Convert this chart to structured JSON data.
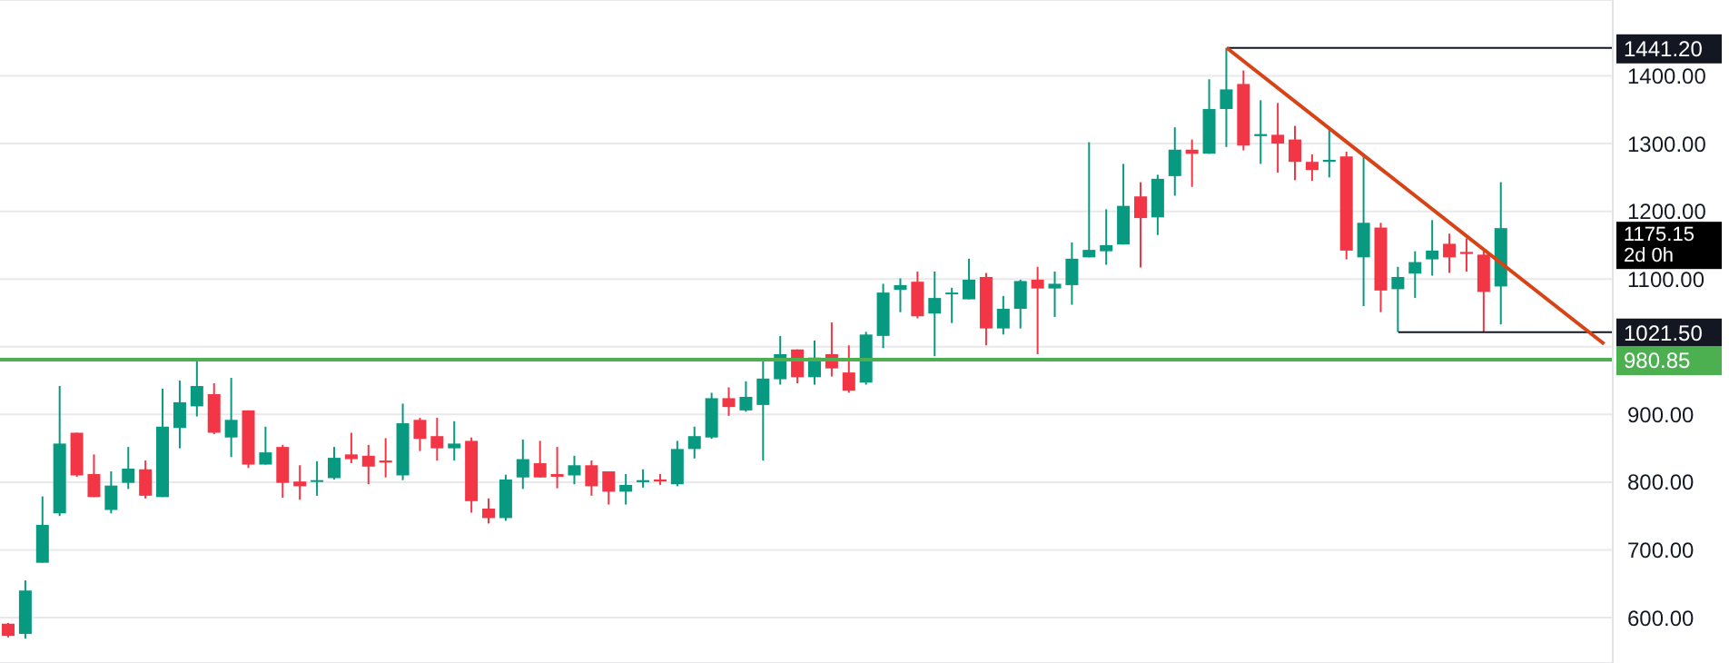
{
  "chart_data": {
    "type": "candlestick",
    "categories": [
      null,
      null,
      null,
      null,
      null,
      null,
      null,
      null,
      null,
      null,
      null,
      null,
      null,
      null,
      null,
      null,
      null,
      null,
      null,
      null,
      null,
      null,
      null,
      null,
      null,
      null,
      null,
      null,
      null,
      null,
      null,
      null,
      null,
      null,
      null,
      null,
      null,
      null,
      null,
      null,
      null,
      null,
      null,
      null,
      null,
      null,
      null,
      null,
      null,
      null,
      null,
      null,
      null,
      null,
      null,
      null,
      null,
      null,
      null,
      null,
      null,
      null,
      null,
      null,
      null,
      null,
      null,
      null,
      null,
      null,
      null,
      null,
      null,
      null,
      null,
      null,
      null,
      null,
      null,
      null,
      null,
      null,
      null,
      null,
      null,
      null,
      null,
      null,
      null,
      null,
      null,
      null,
      null,
      null
    ],
    "ohlc": [
      [
        591,
        592,
        571,
        573
      ],
      [
        576,
        655,
        569,
        640
      ],
      [
        681,
        779,
        681,
        737
      ],
      [
        754,
        942,
        750,
        857
      ],
      [
        873,
        873,
        808,
        810
      ],
      [
        812,
        841,
        778,
        778
      ],
      [
        759,
        816,
        754,
        795
      ],
      [
        799,
        852,
        790,
        820
      ],
      [
        819,
        832,
        776,
        780
      ],
      [
        778,
        938,
        778,
        882
      ],
      [
        880,
        950,
        850,
        918
      ],
      [
        912,
        983,
        897,
        942
      ],
      [
        930,
        946,
        871,
        873
      ],
      [
        866,
        954,
        837,
        892
      ],
      [
        906,
        906,
        821,
        826
      ],
      [
        826,
        882,
        826,
        844
      ],
      [
        852,
        855,
        777,
        799
      ],
      [
        801,
        825,
        774,
        794
      ],
      [
        801,
        831,
        780,
        803
      ],
      [
        806,
        852,
        804,
        836
      ],
      [
        841,
        873,
        828,
        834
      ],
      [
        839,
        855,
        797,
        823
      ],
      [
        832,
        865,
        807,
        829
      ],
      [
        810,
        916,
        803,
        887
      ],
      [
        892,
        895,
        846,
        864
      ],
      [
        868,
        895,
        832,
        850
      ],
      [
        850,
        890,
        832,
        857
      ],
      [
        861,
        866,
        755,
        772
      ],
      [
        761,
        776,
        739,
        747
      ],
      [
        747,
        811,
        743,
        804
      ],
      [
        807,
        863,
        790,
        834
      ],
      [
        828,
        861,
        807,
        807
      ],
      [
        812,
        852,
        791,
        808
      ],
      [
        810,
        839,
        797,
        825
      ],
      [
        825,
        832,
        780,
        794
      ],
      [
        816,
        816,
        767,
        786
      ],
      [
        786,
        812,
        767,
        796
      ],
      [
        800,
        819,
        792,
        803
      ],
      [
        804,
        812,
        796,
        801
      ],
      [
        797,
        861,
        794,
        849
      ],
      [
        849,
        882,
        835,
        868
      ],
      [
        866,
        932,
        864,
        924
      ],
      [
        924,
        940,
        898,
        911
      ],
      [
        906,
        949,
        904,
        926
      ],
      [
        914,
        983,
        832,
        953
      ],
      [
        952,
        1016,
        944,
        989
      ],
      [
        996,
        996,
        946,
        955
      ],
      [
        955,
        1009,
        944,
        984
      ],
      [
        989,
        1036,
        956,
        968
      ],
      [
        962,
        1002,
        932,
        935
      ],
      [
        947,
        1022,
        944,
        1018
      ],
      [
        1016,
        1093,
        998,
        1080
      ],
      [
        1084,
        1101,
        1051,
        1091
      ],
      [
        1096,
        1111,
        1042,
        1045
      ],
      [
        1049,
        1111,
        986,
        1072
      ],
      [
        1078,
        1087,
        1035,
        1080
      ],
      [
        1070,
        1130,
        1070,
        1099
      ],
      [
        1103,
        1109,
        1002,
        1027
      ],
      [
        1027,
        1075,
        1018,
        1056
      ],
      [
        1056,
        1099,
        1027,
        1097
      ],
      [
        1099,
        1118,
        989,
        1086
      ],
      [
        1086,
        1111,
        1044,
        1093
      ],
      [
        1091,
        1154,
        1062,
        1130
      ],
      [
        1132,
        1302,
        1132,
        1143
      ],
      [
        1141,
        1203,
        1121,
        1150
      ],
      [
        1151,
        1270,
        1151,
        1208
      ],
      [
        1222,
        1243,
        1117,
        1190
      ],
      [
        1191,
        1254,
        1165,
        1248
      ],
      [
        1252,
        1324,
        1223,
        1291
      ],
      [
        1291,
        1306,
        1236,
        1285
      ],
      [
        1285,
        1395,
        1285,
        1351
      ],
      [
        1351,
        1441.2,
        1295,
        1380
      ],
      [
        1388,
        1408,
        1290,
        1297
      ],
      [
        1311,
        1364,
        1270,
        1314
      ],
      [
        1313,
        1360,
        1257,
        1300
      ],
      [
        1306,
        1326,
        1246,
        1273
      ],
      [
        1273,
        1284,
        1245,
        1261
      ],
      [
        1273,
        1324,
        1250,
        1276
      ],
      [
        1281,
        1288,
        1129,
        1142
      ],
      [
        1132,
        1281,
        1060,
        1183
      ],
      [
        1176,
        1183,
        1051,
        1083
      ],
      [
        1085,
        1118,
        1021.5,
        1103
      ],
      [
        1108,
        1141,
        1072,
        1125
      ],
      [
        1129,
        1187,
        1105,
        1142
      ],
      [
        1152,
        1167,
        1109,
        1132
      ],
      [
        1140,
        1160,
        1111,
        1137
      ],
      [
        1136,
        1141,
        1022,
        1081
      ],
      [
        1089,
        1243,
        1033,
        1175.15
      ],
      null,
      null,
      null,
      null,
      null,
      null
    ],
    "colors": [
      "#f23645",
      "#089981",
      "#089981",
      "#089981",
      "#f23645",
      "#f23645",
      "#089981",
      "#089981",
      "#f23645",
      "#089981",
      "#089981",
      "#089981",
      "#f23645",
      "#089981",
      "#f23645",
      "#089981",
      "#f23645",
      "#f23645",
      "#089981",
      "#089981",
      "#f23645",
      "#f23645",
      "#f23645",
      "#089981",
      "#f23645",
      "#f23645",
      "#089981",
      "#f23645",
      "#f23645",
      "#089981",
      "#089981",
      "#f23645",
      "#f23645",
      "#089981",
      "#f23645",
      "#f23645",
      "#089981",
      "#089981",
      "#f23645",
      "#089981",
      "#089981",
      "#089981",
      "#f23645",
      "#089981",
      "#089981",
      "#089981",
      "#f23645",
      "#089981",
      "#f23645",
      "#f23645",
      "#089981",
      "#089981",
      "#089981",
      "#f23645",
      "#089981",
      "#089981",
      "#089981",
      "#f23645",
      "#089981",
      "#089981",
      "#f23645",
      "#089981",
      "#089981",
      "#089981",
      "#089981",
      "#089981",
      "#f23645",
      "#089981",
      "#089981",
      "#f23645",
      "#089981",
      "#089981",
      "#f23645",
      "#089981",
      "#f23645",
      "#f23645",
      "#f23645",
      "#089981",
      "#f23645",
      "#089981",
      "#f23645",
      "#089981",
      "#089981",
      "#089981",
      "#f23645",
      "#f23645",
      "#f23645",
      "#089981",
      null,
      null,
      null,
      null,
      null,
      null
    ],
    "series": [
      {
        "type": "line",
        "color": "#d84315",
        "values": [
          null,
          null,
          null,
          null,
          null,
          null,
          null,
          null,
          null,
          null,
          null,
          null,
          null,
          null,
          null,
          null,
          null,
          null,
          null,
          null,
          null,
          null,
          null,
          null,
          null,
          null,
          null,
          null,
          null,
          null,
          null,
          null,
          null,
          null,
          null,
          null,
          null,
          null,
          null,
          null,
          null,
          null,
          null,
          null,
          null,
          null,
          null,
          null,
          null,
          null,
          null,
          null,
          null,
          null,
          null,
          null,
          null,
          null,
          null,
          null,
          null,
          null,
          null,
          null,
          null,
          null,
          null,
          null,
          null,
          null,
          null,
          1441.2,
          null,
          null,
          null,
          null,
          null,
          null,
          null,
          null,
          null,
          null,
          null,
          null,
          null,
          null,
          null,
          null,
          null,
          null,
          null,
          null,
          null,
          1004
        ]
      }
    ],
    "ref_lines": [
      {
        "axis": "y",
        "value": 1441.2,
        "label": "1441.20",
        "color": "#131722"
      },
      {
        "axis": "y",
        "value": 1021.5,
        "label": "1021.50",
        "color": "#131722"
      },
      {
        "axis": "y",
        "value": 980.85,
        "label": "980.85",
        "color": "#4caf50"
      }
    ],
    "annotations": [
      "1175.15\n2d 0h"
    ],
    "ylim": [
      533,
      1512
    ],
    "yticks": [
      {
        "value": 600,
        "label": "600.00"
      },
      {
        "value": 700,
        "label": "700.00"
      },
      {
        "value": 800,
        "label": "800.00"
      },
      {
        "value": 900,
        "label": "900.00"
      },
      {
        "value": 1000,
        "label": null
      },
      {
        "value": 1100,
        "label": "1100.00"
      },
      {
        "value": 1200,
        "label": "1200.00"
      },
      {
        "value": 1300,
        "label": "1300.00"
      },
      {
        "value": 1400,
        "label": "1400.00"
      }
    ],
    "tick_labels": "y",
    "grid": "y"
  }
}
